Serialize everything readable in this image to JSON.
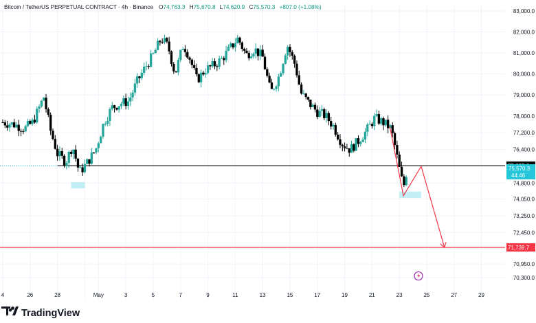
{
  "header": {
    "symbol": "Bitcoin / TetherUS PERPETUAL CONTRACT · 4h · Binance",
    "o_label": "O",
    "o_value": "74,763.3",
    "h_label": "H",
    "h_value": "75,670.8",
    "l_label": "L",
    "l_value": "74,620.9",
    "c_label": "C",
    "c_value": "75,570.3",
    "change": "+807.0 (+1.08%)"
  },
  "logo": {
    "text": "TradingView"
  },
  "colors": {
    "up": "#26a69a",
    "down": "#000000",
    "grid": "#f0f3fa",
    "horizontal_line": "#000000",
    "target_line": "#f23645",
    "projection": "#f23645",
    "zone_highlight": "#b2ebf2",
    "current_price_badge": "#26c6da",
    "axis_text": "#131722"
  },
  "chart_data": {
    "type": "candlestick",
    "title": "Bitcoin / TetherUS PERPETUAL CONTRACT · 4h · Binance",
    "xlim": [
      "Apr 24",
      "Jun 1"
    ],
    "ylim": [
      70000,
      83300
    ],
    "y_ticks": [
      "83,000.0",
      "82,000.0",
      "81,000.0",
      "80,000.0",
      "79,000.0",
      "78,000.0",
      "77,200.0",
      "76,400.0",
      "75,600.0",
      "74,800.0",
      "74,050.0",
      "73,250.0",
      "72,450.0",
      "71,700.0",
      "70,950.0",
      "70,300.0"
    ],
    "y_tick_values": [
      83000,
      82000,
      81000,
      80000,
      79000,
      78000,
      77200,
      76400,
      75600,
      74800,
      74050,
      73250,
      72450,
      71700,
      70950,
      70300
    ],
    "x_ticks": [
      {
        "day": 0,
        "label": "4"
      },
      {
        "day": 2,
        "label": "26"
      },
      {
        "day": 4,
        "label": "28"
      },
      {
        "day": 6,
        "label": ""
      },
      {
        "day": 7,
        "label": "May"
      },
      {
        "day": 9,
        "label": "3"
      },
      {
        "day": 11,
        "label": "5"
      },
      {
        "day": 13,
        "label": "7"
      },
      {
        "day": 15,
        "label": "9"
      },
      {
        "day": 17,
        "label": "11"
      },
      {
        "day": 19,
        "label": "13"
      },
      {
        "day": 21,
        "label": "15"
      },
      {
        "day": 23,
        "label": "17"
      },
      {
        "day": 25,
        "label": "19"
      },
      {
        "day": 27,
        "label": "21"
      },
      {
        "day": 29,
        "label": "23"
      },
      {
        "day": 31,
        "label": "25"
      },
      {
        "day": 33,
        "label": "27"
      },
      {
        "day": 35,
        "label": "29"
      }
    ],
    "price_levels": [
      {
        "name": "support",
        "value": 75635.6,
        "label": "75,635.6"
      },
      {
        "name": "target",
        "value": 71739.7,
        "label": "71,739.7"
      }
    ],
    "current_price": {
      "value": 75570.3,
      "label": "75,570.3",
      "countdown": "44:46"
    },
    "path": [
      [
        0.0,
        77700
      ],
      [
        0.8,
        77600
      ],
      [
        1.6,
        77400
      ],
      [
        2.2,
        77700
      ],
      [
        3.0,
        78900
      ],
      [
        3.5,
        77300
      ],
      [
        4.0,
        76200
      ],
      [
        4.6,
        75800
      ],
      [
        5.1,
        76600
      ],
      [
        5.6,
        75300
      ],
      [
        6.2,
        75800
      ],
      [
        6.8,
        76400
      ],
      [
        7.4,
        77700
      ],
      [
        8.0,
        78400
      ],
      [
        8.6,
        78600
      ],
      [
        9.2,
        78700
      ],
      [
        9.8,
        79600
      ],
      [
        10.4,
        80300
      ],
      [
        11.0,
        80900
      ],
      [
        11.6,
        81700
      ],
      [
        12.1,
        81300
      ],
      [
        12.6,
        80000
      ],
      [
        13.2,
        81400
      ],
      [
        13.6,
        80900
      ],
      [
        14.2,
        79700
      ],
      [
        14.8,
        80200
      ],
      [
        15.4,
        80400
      ],
      [
        16.0,
        80700
      ],
      [
        16.6,
        81200
      ],
      [
        17.2,
        81700
      ],
      [
        17.8,
        80900
      ],
      [
        18.4,
        81200
      ],
      [
        19.0,
        80800
      ],
      [
        19.6,
        79100
      ],
      [
        20.2,
        79900
      ],
      [
        20.8,
        81400
      ],
      [
        21.4,
        80400
      ],
      [
        21.8,
        79100
      ],
      [
        22.4,
        78600
      ],
      [
        23.0,
        78200
      ],
      [
        23.6,
        78000
      ],
      [
        24.2,
        77500
      ],
      [
        24.8,
        76700
      ],
      [
        25.4,
        76400
      ],
      [
        26.0,
        76800
      ],
      [
        26.6,
        77300
      ],
      [
        27.2,
        77900
      ],
      [
        27.8,
        77700
      ],
      [
        28.4,
        77400
      ],
      [
        28.7,
        76500
      ],
      [
        29.0,
        75500
      ],
      [
        29.3,
        74600
      ],
      [
        29.6,
        75570
      ]
    ],
    "candle_width_days": 0.27,
    "projection": [
      [
        28.3,
        77500
      ],
      [
        29.0,
        75200
      ],
      [
        29.3,
        74200
      ],
      [
        30.6,
        75600
      ],
      [
        32.3,
        71739.7
      ]
    ],
    "zones": [
      {
        "name": "low-zone-1",
        "x0": 5.0,
        "x1": 6.0,
        "y0": 74850,
        "y1": 74550
      },
      {
        "name": "low-zone-2",
        "x0": 29.0,
        "x1": 30.6,
        "y0": 74400,
        "y1": 74100
      }
    ],
    "alert": {
      "day": 30.4,
      "value": 70380
    }
  }
}
